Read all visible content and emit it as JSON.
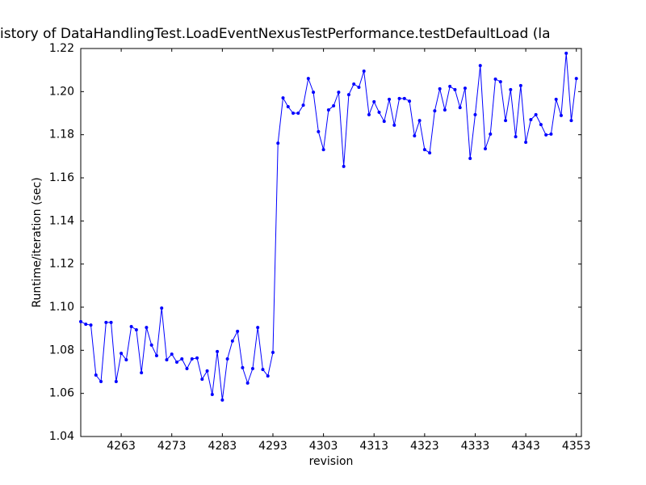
{
  "chart_data": {
    "type": "line",
    "title": "istory of DataHandlingTest.LoadEventNexusTestPerformance.testDefaultLoad (la",
    "x_label": "revision",
    "y_label": "Runtime/iteration (sec)",
    "x": [
      4255,
      4256,
      4257,
      4258,
      4259,
      4260,
      4261,
      4262,
      4263,
      4264,
      4265,
      4266,
      4267,
      4268,
      4269,
      4270,
      4271,
      4272,
      4273,
      4274,
      4275,
      4276,
      4277,
      4278,
      4279,
      4280,
      4281,
      4282,
      4283,
      4284,
      4285,
      4286,
      4287,
      4288,
      4289,
      4290,
      4291,
      4292,
      4293,
      4294,
      4295,
      4296,
      4297,
      4298,
      4299,
      4300,
      4301,
      4302,
      4303,
      4304,
      4305,
      4306,
      4307,
      4308,
      4309,
      4310,
      4311,
      4312,
      4313,
      4314,
      4315,
      4316,
      4317,
      4318,
      4319,
      4320,
      4321,
      4322,
      4323,
      4324,
      4325,
      4326,
      4327,
      4328,
      4329,
      4330,
      4331,
      4332,
      4333,
      4334,
      4335,
      4336,
      4337,
      4338,
      4339,
      4340,
      4341,
      4342,
      4343,
      4344,
      4345,
      4346,
      4347,
      4348,
      4349,
      4350,
      4351,
      4352,
      4353
    ],
    "series": [
      {
        "color": "#0000ff",
        "values": [
          1.0933,
          1.0921,
          1.0917,
          1.0685,
          1.0655,
          1.0929,
          1.0929,
          1.0655,
          1.0786,
          1.0756,
          1.091,
          1.0895,
          1.0696,
          1.0906,
          1.0824,
          1.0775,
          1.0996,
          1.0756,
          1.0782,
          1.0745,
          1.076,
          1.0715,
          1.076,
          1.0764,
          1.0666,
          1.0704,
          1.0595,
          1.0794,
          1.0569,
          1.076,
          1.0843,
          1.0888,
          1.0719,
          1.0648,
          1.0715,
          1.0906,
          1.0711,
          1.0681,
          1.079,
          1.1761,
          1.1971,
          1.193,
          1.19,
          1.19,
          1.1937,
          1.2061,
          1.1997,
          1.1814,
          1.1731,
          1.1915,
          1.1934,
          1.1997,
          1.1653,
          1.1986,
          1.2035,
          1.202,
          1.2095,
          1.1893,
          1.1953,
          1.1904,
          1.1862,
          1.1964,
          1.1844,
          1.1968,
          1.1968,
          1.1956,
          1.1795,
          1.1866,
          1.1731,
          1.1716,
          1.1911,
          1.2013,
          1.1915,
          1.2024,
          1.2009,
          1.1926,
          1.2016,
          1.169,
          1.1893,
          1.2121,
          1.1735,
          1.1803,
          1.2058,
          1.2046,
          1.1866,
          1.2009,
          1.1791,
          1.2028,
          1.1765,
          1.187,
          1.1893,
          1.1847,
          1.1799,
          1.1803,
          1.1964,
          1.1889,
          1.2178,
          1.1866,
          1.2061
        ]
      }
    ],
    "xlim": [
      4255,
      4354
    ],
    "xticks": [
      4263,
      4273,
      4283,
      4293,
      4303,
      4313,
      4323,
      4333,
      4343,
      4353
    ],
    "ylim": [
      1.04,
      1.22
    ],
    "yticks": [
      1.04,
      1.06,
      1.08,
      {
        "value": 1.1,
        "label": "1.10"
      },
      1.12,
      1.14,
      1.16,
      1.18,
      {
        "value": 1.2,
        "label": "1.20"
      },
      1.22
    ],
    "grid": false
  }
}
